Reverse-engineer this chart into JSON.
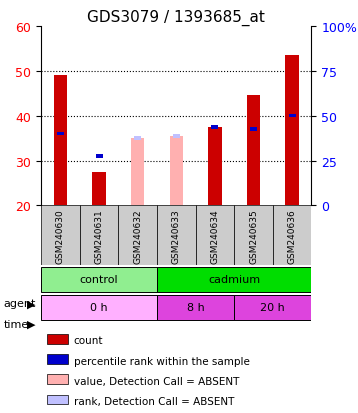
{
  "title": "GDS3079 / 1393685_at",
  "samples": [
    "GSM240630",
    "GSM240631",
    "GSM240632",
    "GSM240633",
    "GSM240634",
    "GSM240635",
    "GSM240636"
  ],
  "ylim_left": [
    20,
    60
  ],
  "ylim_right": [
    0,
    100
  ],
  "left_ticks": [
    20,
    30,
    40,
    50,
    60
  ],
  "right_ticks": [
    0,
    25,
    50,
    75,
    100
  ],
  "right_tick_labels": [
    "0",
    "25",
    "50",
    "75",
    "100%"
  ],
  "red_bars": [
    49,
    27.5,
    null,
    null,
    37.5,
    44.5,
    53.5
  ],
  "red_bar_bottom": [
    20,
    20,
    null,
    null,
    20,
    20,
    20
  ],
  "pink_bars": [
    null,
    null,
    35,
    35.5,
    null,
    null,
    null
  ],
  "pink_bar_bottom": [
    null,
    null,
    20,
    20,
    null,
    null,
    null
  ],
  "blue_squares": [
    36,
    31,
    null,
    null,
    37.5,
    37,
    40
  ],
  "light_blue_squares": [
    null,
    null,
    35,
    35.5,
    null,
    null,
    null
  ],
  "agent_groups": [
    {
      "label": "control",
      "span": [
        0,
        3
      ],
      "color": "#90EE90"
    },
    {
      "label": "cadmium",
      "span": [
        3,
        7
      ],
      "color": "#00DD00"
    }
  ],
  "time_groups": [
    {
      "label": "0 h",
      "span": [
        0,
        3
      ],
      "color": "#FFB0FF"
    },
    {
      "label": "8 h",
      "span": [
        3,
        5
      ],
      "color": "#DD44DD"
    },
    {
      "label": "20 h",
      "span": [
        5,
        7
      ],
      "color": "#DD44DD"
    }
  ],
  "legend_items": [
    {
      "color": "#CC0000",
      "label": "count"
    },
    {
      "color": "#0000CC",
      "label": "percentile rank within the sample"
    },
    {
      "color": "#FFB0B0",
      "label": "value, Detection Call = ABSENT"
    },
    {
      "color": "#C0C0FF",
      "label": "rank, Detection Call = ABSENT"
    }
  ],
  "bar_color_red": "#CC0000",
  "bar_color_pink": "#FFB0B0",
  "bar_color_blue": "#0000CC",
  "bar_color_lightblue": "#C0C0FF",
  "grid_color": "#000000",
  "background_plot": "#FFFFFF",
  "background_xticklabels": "#D3D3D3",
  "title_fontsize": 11,
  "tick_fontsize": 9,
  "label_fontsize": 9
}
